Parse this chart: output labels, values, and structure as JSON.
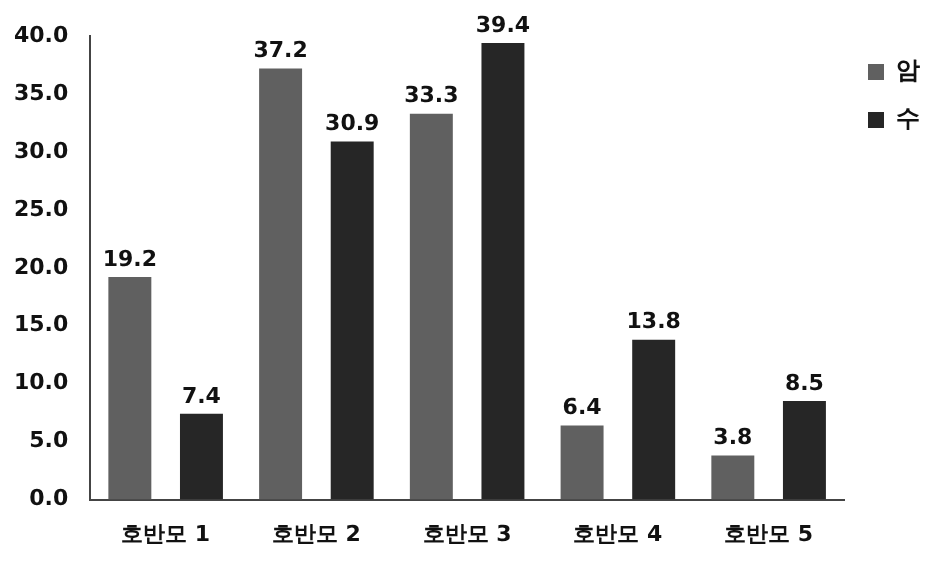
{
  "chart_data": {
    "type": "bar",
    "categories": [
      "호반모 1",
      "호반모 2",
      "호반모 3",
      "호반모 4",
      "호반모 5"
    ],
    "series": [
      {
        "name": "암",
        "color": "#606060",
        "values": [
          19.2,
          37.2,
          33.3,
          6.4,
          3.8
        ]
      },
      {
        "name": "수",
        "color": "#262626",
        "values": [
          7.4,
          30.9,
          39.4,
          13.8,
          8.5
        ]
      }
    ],
    "ylim": [
      0,
      40
    ],
    "yticks": [
      {
        "value": 0,
        "label": "0.0"
      },
      {
        "value": 5,
        "label": "5.0"
      },
      {
        "value": 10,
        "label": "10.0"
      },
      {
        "value": 15,
        "label": "15.0"
      },
      {
        "value": 20,
        "label": "20.0"
      },
      {
        "value": 25,
        "label": "25.0"
      },
      {
        "value": 30,
        "label": "30.0"
      },
      {
        "value": 35,
        "label": "35.0"
      },
      {
        "value": 40,
        "label": "40.0"
      }
    ],
    "grid": false,
    "legend": "top right",
    "data_labels": true
  }
}
